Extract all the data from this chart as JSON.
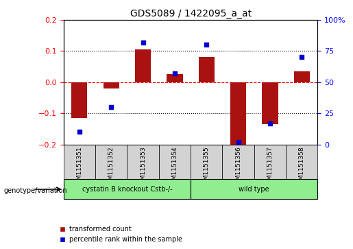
{
  "title": "GDS5089 / 1422095_a_at",
  "samples": [
    "GSM1151351",
    "GSM1151352",
    "GSM1151353",
    "GSM1151354",
    "GSM1151355",
    "GSM1151356",
    "GSM1151357",
    "GSM1151358"
  ],
  "transformed_count": [
    -0.115,
    -0.02,
    0.105,
    0.025,
    0.08,
    -0.2,
    -0.135,
    0.035
  ],
  "percentile_rank": [
    10,
    30,
    82,
    57,
    80,
    2,
    17,
    70
  ],
  "ylim_left": [
    -0.2,
    0.2
  ],
  "ylim_right": [
    0,
    100
  ],
  "yticks_left": [
    -0.2,
    -0.1,
    0,
    0.1,
    0.2
  ],
  "yticks_right": [
    0,
    25,
    50,
    75,
    100
  ],
  "ytick_labels_right": [
    "0",
    "25",
    "50",
    "75",
    "100%"
  ],
  "hlines": [
    0.1,
    0.0,
    -0.1
  ],
  "hline_styles": [
    "dotted",
    "dashed_red",
    "dotted"
  ],
  "bar_color": "#AA1111",
  "dot_color": "#0000CC",
  "group1_label": "cystatin B knockout Cstb-/-",
  "group2_label": "wild type",
  "group1_indices": [
    0,
    1,
    2,
    3
  ],
  "group2_indices": [
    4,
    5,
    6,
    7
  ],
  "group_label_prefix": "genotype/variation",
  "legend_bar_label": "transformed count",
  "legend_dot_label": "percentile rank within the sample",
  "group1_color": "#90EE90",
  "group2_color": "#90EE90",
  "bg_color": "#FFFFFF",
  "plot_bg_color": "#FFFFFF",
  "tick_gray": "#AAAAAA"
}
